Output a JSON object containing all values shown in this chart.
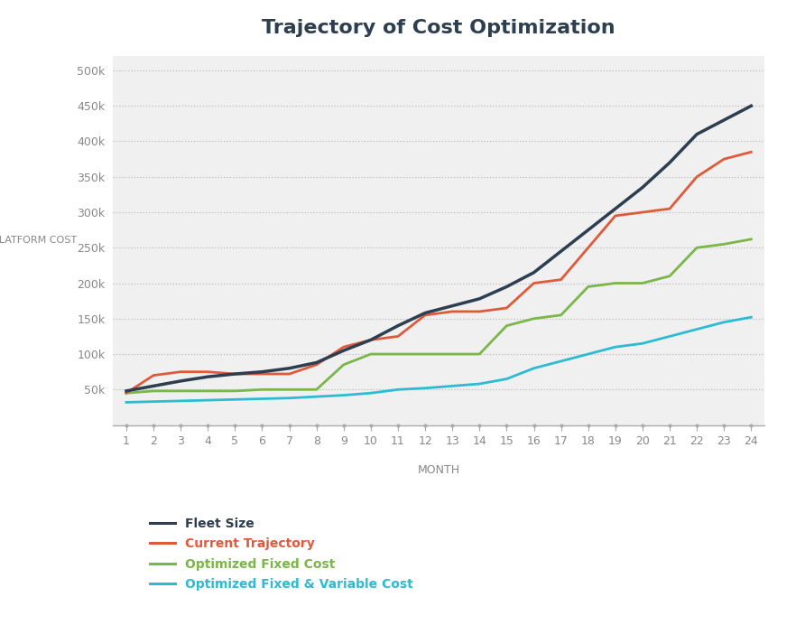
{
  "title": "Trajectory of Cost Optimization",
  "xlabel": "MONTH",
  "ylabel": "PLATFORM COST",
  "months": [
    1,
    2,
    3,
    4,
    5,
    6,
    7,
    8,
    9,
    10,
    11,
    12,
    13,
    14,
    15,
    16,
    17,
    18,
    19,
    20,
    21,
    22,
    23,
    24
  ],
  "fleet_size": [
    48000,
    55000,
    62000,
    68000,
    72000,
    75000,
    80000,
    88000,
    105000,
    120000,
    140000,
    158000,
    168000,
    178000,
    195000,
    215000,
    245000,
    275000,
    305000,
    335000,
    370000,
    410000,
    430000,
    450000
  ],
  "current_trajectory": [
    45000,
    70000,
    75000,
    75000,
    72000,
    72000,
    72000,
    85000,
    110000,
    120000,
    125000,
    155000,
    160000,
    160000,
    165000,
    200000,
    205000,
    250000,
    295000,
    300000,
    305000,
    350000,
    375000,
    385000
  ],
  "optimized_fixed": [
    45000,
    48000,
    48000,
    48000,
    48000,
    50000,
    50000,
    50000,
    85000,
    100000,
    100000,
    100000,
    100000,
    100000,
    140000,
    150000,
    155000,
    195000,
    200000,
    200000,
    210000,
    250000,
    255000,
    262000
  ],
  "optimized_fixed_variable": [
    32000,
    33000,
    34000,
    35000,
    36000,
    37000,
    38000,
    40000,
    42000,
    45000,
    50000,
    52000,
    55000,
    58000,
    65000,
    80000,
    90000,
    100000,
    110000,
    115000,
    125000,
    135000,
    145000,
    152000
  ],
  "fleet_color": "#2c3e50",
  "current_color": "#e05a3a",
  "fixed_color": "#7ab648",
  "fixed_variable_color": "#2bbcd4",
  "background_color": "#f0f0f0",
  "grid_color": "#bbbbbb",
  "title_color": "#2c3e50",
  "axis_label_color": "#888888",
  "tick_label_color": "#888888",
  "ylim": [
    0,
    520000
  ],
  "yticks": [
    50000,
    100000,
    150000,
    200000,
    250000,
    300000,
    350000,
    400000,
    450000,
    500000
  ],
  "line_width": 2.0,
  "legend_labels": [
    "Fleet Size",
    "Current Trajectory",
    "Optimized Fixed Cost",
    "Optimized Fixed & Variable Cost"
  ],
  "legend_colors": [
    "#2c3e50",
    "#e05a3a",
    "#7ab648",
    "#2bbcd4"
  ]
}
